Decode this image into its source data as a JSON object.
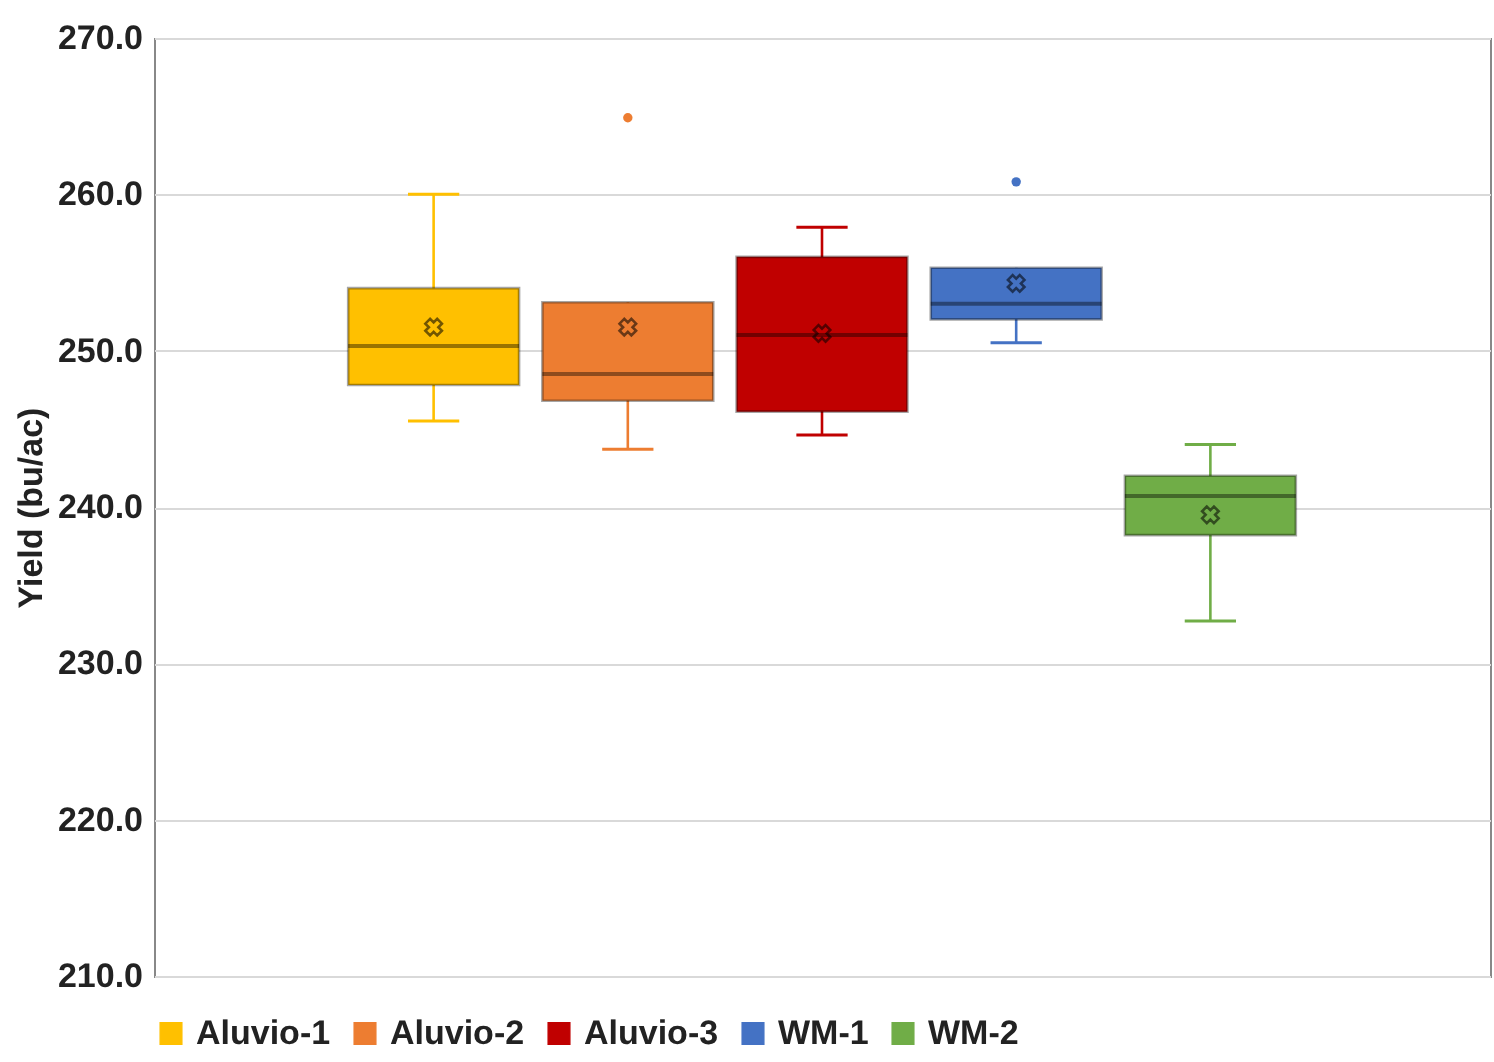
{
  "chart_data": {
    "type": "box",
    "ylabel": "Yield (bu/ac)",
    "categories": [
      null
    ],
    "ylim": [
      210,
      270
    ],
    "yticks": [
      {
        "value": 210,
        "label": "210.0"
      },
      {
        "value": 220,
        "label": "220.0"
      },
      {
        "value": 230,
        "label": "230.0"
      },
      {
        "value": 240,
        "label": "240.0"
      },
      {
        "value": 250,
        "label": "250.0"
      },
      {
        "value": 260,
        "label": "260.0"
      },
      {
        "value": 270,
        "label": "270.0"
      }
    ],
    "grid": "y",
    "legend": "bottom",
    "series": [
      {
        "name": "Aluvio-1",
        "color": "#ffc000",
        "boxes": [
          {
            "low": 245.5,
            "q1": 247.8,
            "median": 250.3,
            "q3": 254.0,
            "high": 260.0,
            "mean": 251.5
          }
        ]
      },
      {
        "name": "Aluvio-2",
        "color": "#ed7d31",
        "boxes": [
          {
            "low": 243.7,
            "q1": 246.8,
            "median": 248.5,
            "q3": 253.1,
            "high": 253.1,
            "mean": 251.5,
            "outliers": [
              264.9
            ]
          }
        ]
      },
      {
        "name": "Aluvio-3",
        "color": "#c00000",
        "boxes": [
          {
            "low": 244.6,
            "q1": 246.1,
            "median": 251.0,
            "q3": 256.0,
            "high": 257.9,
            "mean": 251.1
          }
        ]
      },
      {
        "name": "WM-1",
        "color": "#4472c4",
        "boxes": [
          {
            "low": 250.5,
            "q1": 252.0,
            "median": 253.0,
            "q3": 255.3,
            "high": 255.3,
            "mean": 254.3,
            "outliers": [
              260.8
            ]
          }
        ]
      },
      {
        "name": "WM-2",
        "color": "#70ad47",
        "boxes": [
          {
            "low": 232.7,
            "q1": 238.2,
            "median": 240.7,
            "q3": 242.0,
            "high": 244.0,
            "mean": 239.5
          }
        ]
      }
    ]
  }
}
